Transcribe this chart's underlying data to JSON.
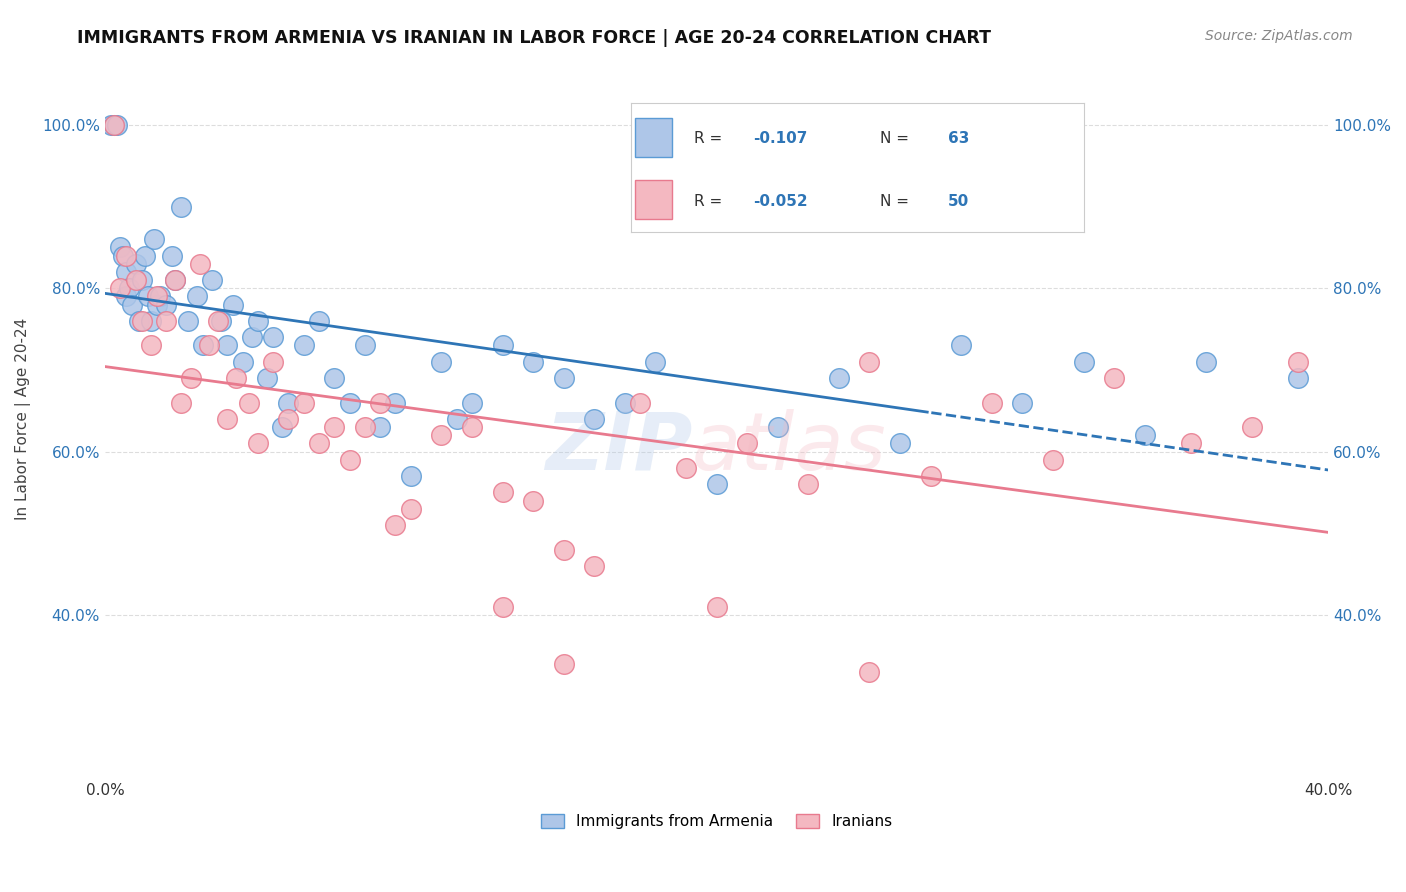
{
  "title": "IMMIGRANTS FROM ARMENIA VS IRANIAN IN LABOR FORCE | AGE 20-24 CORRELATION CHART",
  "source": "Source: ZipAtlas.com",
  "ylabel": "In Labor Force | Age 20-24",
  "xlim": [
    0.0,
    0.4
  ],
  "ylim": [
    0.2,
    1.08
  ],
  "xticks": [
    0.0,
    0.05,
    0.1,
    0.15,
    0.2,
    0.25,
    0.3,
    0.35,
    0.4
  ],
  "xtick_labels": [
    "0.0%",
    "",
    "",
    "",
    "",
    "",
    "",
    "",
    "40.0%"
  ],
  "yticks": [
    0.4,
    0.6,
    0.8,
    1.0
  ],
  "ytick_labels": [
    "40.0%",
    "60.0%",
    "80.0%",
    "100.0%"
  ],
  "background_color": "#ffffff",
  "grid_color": "#dddddd",
  "armenia_color": "#aec6e8",
  "iran_color": "#f4b8c1",
  "armenia_edge_color": "#5b9bd5",
  "iran_edge_color": "#e87a8e",
  "R_armenia": -0.107,
  "N_armenia": 63,
  "R_iran": -0.052,
  "N_iran": 50,
  "legend_R_color": "#333333",
  "legend_N_color": "#2e75b6",
  "armenia_trend_color": "#2e75b6",
  "iran_trend_color": "#e87a8e",
  "armenia_x": [
    0.002,
    0.003,
    0.004,
    0.005,
    0.006,
    0.007,
    0.007,
    0.008,
    0.009,
    0.01,
    0.011,
    0.012,
    0.013,
    0.014,
    0.015,
    0.016,
    0.017,
    0.018,
    0.02,
    0.022,
    0.023,
    0.025,
    0.027,
    0.03,
    0.032,
    0.035,
    0.038,
    0.04,
    0.042,
    0.045,
    0.048,
    0.05,
    0.053,
    0.055,
    0.058,
    0.06,
    0.065,
    0.07,
    0.075,
    0.08,
    0.085,
    0.09,
    0.095,
    0.1,
    0.11,
    0.115,
    0.12,
    0.13,
    0.14,
    0.15,
    0.16,
    0.17,
    0.18,
    0.2,
    0.22,
    0.24,
    0.26,
    0.28,
    0.3,
    0.32,
    0.34,
    0.36,
    0.39
  ],
  "armenia_y": [
    1.0,
    1.0,
    1.0,
    0.85,
    0.84,
    0.82,
    0.79,
    0.8,
    0.78,
    0.83,
    0.76,
    0.81,
    0.84,
    0.79,
    0.76,
    0.86,
    0.78,
    0.79,
    0.78,
    0.84,
    0.81,
    0.9,
    0.76,
    0.79,
    0.73,
    0.81,
    0.76,
    0.73,
    0.78,
    0.71,
    0.74,
    0.76,
    0.69,
    0.74,
    0.63,
    0.66,
    0.73,
    0.76,
    0.69,
    0.66,
    0.73,
    0.63,
    0.66,
    0.57,
    0.71,
    0.64,
    0.66,
    0.73,
    0.71,
    0.69,
    0.64,
    0.66,
    0.71,
    0.56,
    0.63,
    0.69,
    0.61,
    0.73,
    0.66,
    0.71,
    0.62,
    0.71,
    0.69
  ],
  "iran_x": [
    0.003,
    0.005,
    0.007,
    0.01,
    0.012,
    0.015,
    0.017,
    0.02,
    0.023,
    0.025,
    0.028,
    0.031,
    0.034,
    0.037,
    0.04,
    0.043,
    0.047,
    0.05,
    0.055,
    0.06,
    0.065,
    0.07,
    0.075,
    0.08,
    0.085,
    0.09,
    0.095,
    0.1,
    0.11,
    0.12,
    0.13,
    0.14,
    0.15,
    0.16,
    0.175,
    0.19,
    0.21,
    0.23,
    0.25,
    0.27,
    0.29,
    0.31,
    0.33,
    0.355,
    0.375,
    0.39,
    0.15,
    0.2,
    0.25,
    0.13
  ],
  "iran_y": [
    1.0,
    0.8,
    0.84,
    0.81,
    0.76,
    0.73,
    0.79,
    0.76,
    0.81,
    0.66,
    0.69,
    0.83,
    0.73,
    0.76,
    0.64,
    0.69,
    0.66,
    0.61,
    0.71,
    0.64,
    0.66,
    0.61,
    0.63,
    0.59,
    0.63,
    0.66,
    0.51,
    0.53,
    0.62,
    0.63,
    0.41,
    0.54,
    0.34,
    0.46,
    0.66,
    0.58,
    0.61,
    0.56,
    0.71,
    0.57,
    0.66,
    0.59,
    0.69,
    0.61,
    0.63,
    0.71,
    0.48,
    0.41,
    0.33,
    0.55
  ]
}
